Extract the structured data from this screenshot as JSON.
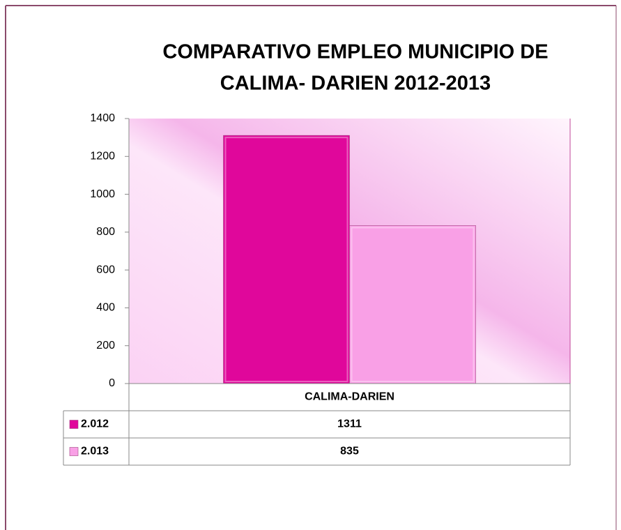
{
  "chart_data": {
    "type": "bar",
    "title": [
      "COMPARATIVO EMPLEO  MUNICIPIO DE",
      "CALIMA- DARIEN  2012-2013"
    ],
    "categories": [
      "CALIMA-DARIEN"
    ],
    "series": [
      {
        "name": "2.012",
        "color": "#e0079b",
        "values": [
          1311
        ]
      },
      {
        "name": "2.013",
        "color": "#f9a0e6",
        "values": [
          835
        ]
      }
    ],
    "ylim": [
      0,
      1400
    ],
    "yticks": [
      0,
      200,
      400,
      600,
      800,
      1000,
      1200,
      1400
    ],
    "grid": false,
    "data_table": true
  }
}
